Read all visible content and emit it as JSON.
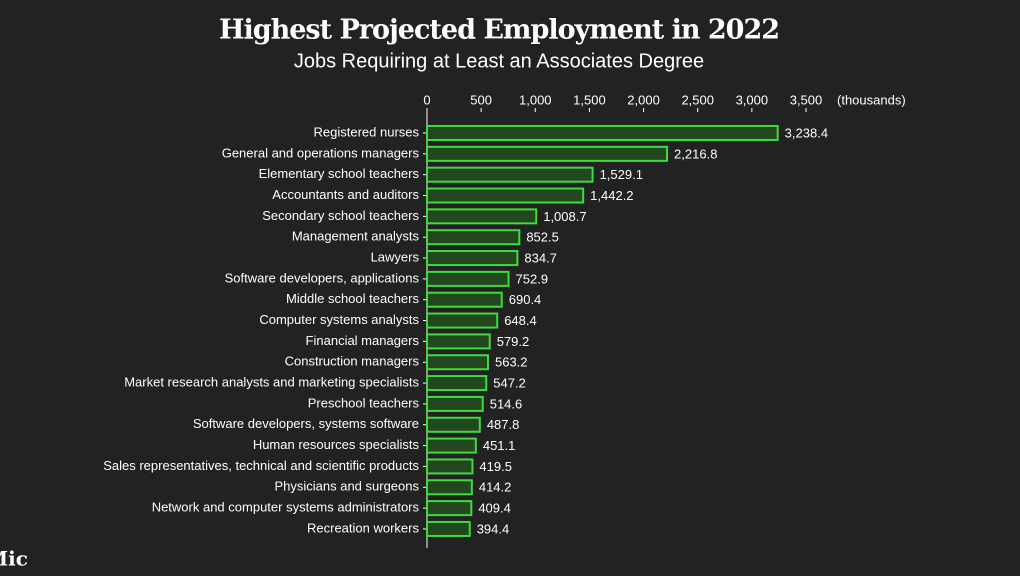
{
  "chart_data": {
    "type": "hbar",
    "title": "Highest Projected Employment in 2022",
    "subtitle": "Jobs Requiring at Least an Associates Degree",
    "x_unit_label": "(thousands)",
    "logo": "Mic",
    "categories": [
      "Registered nurses",
      "General and operations managers",
      "Elementary school teachers",
      "Accountants and auditors",
      "Secondary school teachers",
      "Management analysts",
      "Lawyers",
      "Software developers, applications",
      "Middle school teachers",
      "Computer systems analysts",
      "Financial managers",
      "Construction managers",
      "Market research analysts and marketing specialists",
      "Preschool teachers",
      "Software developers, systems software",
      "Human resources specialists",
      "Sales representatives, technical and scientific products",
      "Physicians and surgeons",
      "Network and computer systems administrators",
      "Recreation workers"
    ],
    "values": [
      3238.4,
      2216.8,
      1529.1,
      1442.2,
      1008.7,
      852.5,
      834.7,
      752.9,
      690.4,
      648.4,
      579.2,
      563.2,
      547.2,
      514.6,
      487.8,
      451.1,
      419.5,
      414.2,
      409.4,
      394.4
    ],
    "value_labels": [
      "3,238.4",
      "2,216.8",
      "1,529.1",
      "1,442.2",
      "1,008.7",
      "852.5",
      "834.7",
      "752.9",
      "690.4",
      "648.4",
      "579.2",
      "563.2",
      "547.2",
      "514.6",
      "487.8",
      "451.1",
      "419.5",
      "414.2",
      "409.4",
      "394.4"
    ],
    "color": "#3ddc3d",
    "xlim": [
      0,
      3500
    ],
    "xticks": [
      0,
      500,
      {
        "value": 1000,
        "label": "1,000"
      },
      {
        "value": 1500,
        "label": "1,500"
      },
      {
        "value": 2000,
        "label": "2,000"
      },
      {
        "value": 2500,
        "label": "2,500"
      },
      {
        "value": 3000,
        "label": "3,000"
      },
      {
        "value": 3500,
        "label": "3,500"
      }
    ]
  }
}
